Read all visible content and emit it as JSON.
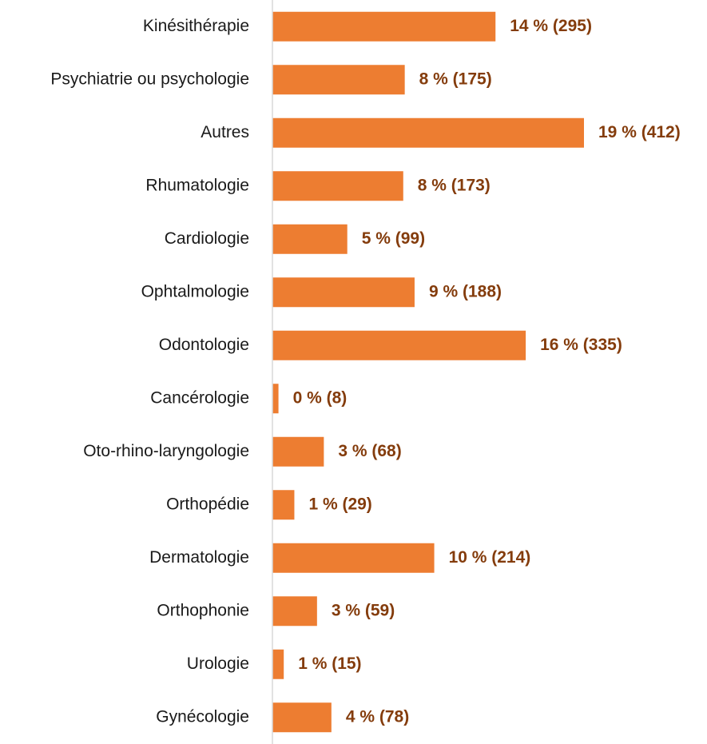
{
  "chart_data": {
    "type": "bar",
    "orientation": "horizontal",
    "color": "#ed7d31",
    "label_color": "#843c0c",
    "categories": [
      "Kinésithérapie",
      "Psychiatrie ou psychologie",
      "Autres",
      "Rhumatologie",
      "Cardiologie",
      "Ophtalmologie",
      "Odontologie",
      "Cancérologie",
      "Oto-rhino-laryngologie",
      "Orthopédie",
      "Dermatologie",
      "Orthophonie",
      "Urologie",
      "Gynécologie"
    ],
    "values": [
      295,
      175,
      412,
      173,
      99,
      188,
      335,
      8,
      68,
      29,
      214,
      59,
      15,
      78
    ],
    "value_labels": [
      "14 % (295)",
      "8 % (175)",
      "19 % (412)",
      "8 % (173)",
      "5 % (99)",
      "9 % (188)",
      "16 % (335)",
      "0 % (8)",
      "3 % (68)",
      "1 % (29)",
      "10 % (214)",
      "3 % (59)",
      "1 % (15)",
      "4 % (78)"
    ]
  }
}
